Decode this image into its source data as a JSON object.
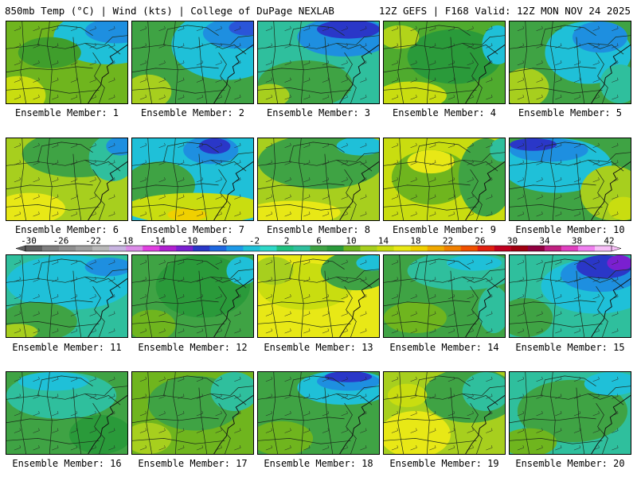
{
  "header": {
    "left": "850mb Temp (°C) | Wind (kts) | College of DuPage NEXLAB",
    "right": "12Z GEFS | F168 Valid: 12Z MON NOV 24 2025"
  },
  "caption_prefix": "Ensemble Member: ",
  "members": [
    {
      "label": "Ensemble Member: 1",
      "bg": "#6fb51e",
      "blobs": [
        {
          "c": "#1fc0d8",
          "cx": 130,
          "cy": 20,
          "rx": 70,
          "ry": 35
        },
        {
          "c": "#1e8fe0",
          "cx": 140,
          "cy": 12,
          "rx": 40,
          "ry": 16
        },
        {
          "c": "#c9dd10",
          "cx": 15,
          "cy": 95,
          "rx": 35,
          "ry": 25
        },
        {
          "c": "#3f9e2c",
          "cx": 55,
          "cy": 40,
          "rx": 40,
          "ry": 20
        }
      ]
    },
    {
      "label": "Ensemble Member: 2",
      "bg": "#3fa344",
      "blobs": [
        {
          "c": "#1fc0d8",
          "cx": 120,
          "cy": 30,
          "rx": 70,
          "ry": 45
        },
        {
          "c": "#1e8fe0",
          "cx": 135,
          "cy": 15,
          "rx": 45,
          "ry": 20
        },
        {
          "c": "#2a55d8",
          "cx": 145,
          "cy": 8,
          "rx": 22,
          "ry": 10
        },
        {
          "c": "#a7cf1e",
          "cx": 20,
          "cy": 90,
          "rx": 30,
          "ry": 22
        }
      ]
    },
    {
      "label": "Ensemble Member: 3",
      "bg": "#2fbf9d",
      "blobs": [
        {
          "c": "#1e8fe0",
          "cx": 110,
          "cy": 20,
          "rx": 60,
          "ry": 25
        },
        {
          "c": "#2a37c8",
          "cx": 115,
          "cy": 10,
          "rx": 40,
          "ry": 12
        },
        {
          "c": "#3fa344",
          "cx": 60,
          "cy": 80,
          "rx": 60,
          "ry": 30
        },
        {
          "c": "#a7cf1e",
          "cx": 15,
          "cy": 95,
          "rx": 25,
          "ry": 15
        }
      ]
    },
    {
      "label": "Ensemble Member: 4",
      "bg": "#4fab2e",
      "blobs": [
        {
          "c": "#2a9a3a",
          "cx": 90,
          "cy": 45,
          "rx": 60,
          "ry": 35
        },
        {
          "c": "#1fc0d8",
          "cx": 145,
          "cy": 30,
          "rx": 20,
          "ry": 25
        },
        {
          "c": "#c9dd10",
          "cx": 35,
          "cy": 95,
          "rx": 45,
          "ry": 18
        },
        {
          "c": "#b2d41a",
          "cx": 20,
          "cy": 20,
          "rx": 25,
          "ry": 15
        }
      ]
    },
    {
      "label": "Ensemble Member: 5",
      "bg": "#3fa344",
      "blobs": [
        {
          "c": "#1fc0d8",
          "cx": 100,
          "cy": 40,
          "rx": 55,
          "ry": 40
        },
        {
          "c": "#1e8fe0",
          "cx": 115,
          "cy": 20,
          "rx": 35,
          "ry": 20
        },
        {
          "c": "#a7cf1e",
          "cx": 20,
          "cy": 85,
          "rx": 30,
          "ry": 25
        },
        {
          "c": "#2fbf9d",
          "cx": 140,
          "cy": 80,
          "rx": 25,
          "ry": 25
        }
      ]
    },
    {
      "label": "Ensemble Member: 6",
      "bg": "#a7cf1e",
      "blobs": [
        {
          "c": "#3fa344",
          "cx": 90,
          "cy": 20,
          "rx": 70,
          "ry": 30
        },
        {
          "c": "#2fbf9d",
          "cx": 135,
          "cy": 25,
          "rx": 30,
          "ry": 30
        },
        {
          "c": "#1e8fe0",
          "cx": 145,
          "cy": 10,
          "rx": 18,
          "ry": 12
        },
        {
          "c": "#e8e816",
          "cx": 30,
          "cy": 90,
          "rx": 45,
          "ry": 20
        }
      ]
    },
    {
      "label": "Ensemble Member: 7",
      "bg": "#1fc0d8",
      "blobs": [
        {
          "c": "#1e8fe0",
          "cx": 100,
          "cy": 15,
          "rx": 35,
          "ry": 18
        },
        {
          "c": "#2a37c8",
          "cx": 105,
          "cy": 10,
          "rx": 20,
          "ry": 10
        },
        {
          "c": "#3fa344",
          "cx": 35,
          "cy": 60,
          "rx": 45,
          "ry": 30
        },
        {
          "c": "#c9dd10",
          "cx": 80,
          "cy": 90,
          "rx": 90,
          "ry": 20
        },
        {
          "c": "#f0d000",
          "cx": 70,
          "cy": 98,
          "rx": 25,
          "ry": 8
        }
      ]
    },
    {
      "label": "Ensemble Member: 8",
      "bg": "#a7cf1e",
      "blobs": [
        {
          "c": "#3fa344",
          "cx": 80,
          "cy": 30,
          "rx": 80,
          "ry": 35
        },
        {
          "c": "#1fc0d8",
          "cx": 130,
          "cy": 10,
          "rx": 30,
          "ry": 12
        },
        {
          "c": "#e8e816",
          "cx": 45,
          "cy": 95,
          "rx": 60,
          "ry": 15
        }
      ]
    },
    {
      "label": "Ensemble Member: 9",
      "bg": "#c9dd10",
      "blobs": [
        {
          "c": "#6fb51e",
          "cx": 60,
          "cy": 50,
          "rx": 50,
          "ry": 35
        },
        {
          "c": "#3fa344",
          "cx": 130,
          "cy": 50,
          "rx": 35,
          "ry": 50
        },
        {
          "c": "#2fbf9d",
          "cx": 150,
          "cy": 15,
          "rx": 15,
          "ry": 15
        },
        {
          "c": "#e8e816",
          "cx": 60,
          "cy": 30,
          "rx": 30,
          "ry": 15
        }
      ]
    },
    {
      "label": "Ensemble Member: 10",
      "bg": "#3fa344",
      "blobs": [
        {
          "c": "#1fc0d8",
          "cx": 60,
          "cy": 35,
          "rx": 70,
          "ry": 35
        },
        {
          "c": "#1e8fe0",
          "cx": 50,
          "cy": 15,
          "rx": 50,
          "ry": 15
        },
        {
          "c": "#2a37c8",
          "cx": 30,
          "cy": 8,
          "rx": 30,
          "ry": 8
        },
        {
          "c": "#a7cf1e",
          "cx": 130,
          "cy": 70,
          "rx": 40,
          "ry": 35
        },
        {
          "c": "#c9dd10",
          "cx": 145,
          "cy": 90,
          "rx": 20,
          "ry": 15
        }
      ]
    },
    {
      "label": "Ensemble Member: 11",
      "bg": "#2fbf9d",
      "blobs": [
        {
          "c": "#1fc0d8",
          "cx": 80,
          "cy": 35,
          "rx": 80,
          "ry": 35
        },
        {
          "c": "#1e8fe0",
          "cx": 130,
          "cy": 15,
          "rx": 30,
          "ry": 12
        },
        {
          "c": "#3fa344",
          "cx": 40,
          "cy": 85,
          "rx": 50,
          "ry": 25
        },
        {
          "c": "#a7cf1e",
          "cx": 15,
          "cy": 98,
          "rx": 25,
          "ry": 10
        }
      ]
    },
    {
      "label": "Ensemble Member: 12",
      "bg": "#3fa344",
      "blobs": [
        {
          "c": "#2a9a3a",
          "cx": 90,
          "cy": 40,
          "rx": 60,
          "ry": 40
        },
        {
          "c": "#1fc0d8",
          "cx": 140,
          "cy": 20,
          "rx": 20,
          "ry": 18
        },
        {
          "c": "#6fb51e",
          "cx": 25,
          "cy": 90,
          "rx": 30,
          "ry": 20
        }
      ]
    },
    {
      "label": "Ensemble Member: 13",
      "bg": "#e8e816",
      "blobs": [
        {
          "c": "#c9dd10",
          "cx": 60,
          "cy": 40,
          "rx": 60,
          "ry": 30
        },
        {
          "c": "#3fa344",
          "cx": 125,
          "cy": 20,
          "rx": 45,
          "ry": 25
        },
        {
          "c": "#1fc0d8",
          "cx": 145,
          "cy": 10,
          "rx": 20,
          "ry": 10
        },
        {
          "c": "#a7cf1e",
          "cx": 20,
          "cy": 20,
          "rx": 25,
          "ry": 18
        }
      ]
    },
    {
      "label": "Ensemble Member: 14",
      "bg": "#3fa344",
      "blobs": [
        {
          "c": "#2fbf9d",
          "cx": 100,
          "cy": 20,
          "rx": 70,
          "ry": 25
        },
        {
          "c": "#1fc0d8",
          "cx": 115,
          "cy": 10,
          "rx": 35,
          "ry": 10
        },
        {
          "c": "#6fb51e",
          "cx": 40,
          "cy": 80,
          "rx": 40,
          "ry": 20
        },
        {
          "c": "#2fbf9d",
          "cx": 140,
          "cy": 70,
          "rx": 20,
          "ry": 30
        }
      ]
    },
    {
      "label": "Ensemble Member: 15",
      "bg": "#2fbf9d",
      "blobs": [
        {
          "c": "#1fc0d8",
          "cx": 110,
          "cy": 40,
          "rx": 70,
          "ry": 35
        },
        {
          "c": "#1e8fe0",
          "cx": 115,
          "cy": 25,
          "rx": 50,
          "ry": 22
        },
        {
          "c": "#2a37c8",
          "cx": 120,
          "cy": 15,
          "rx": 35,
          "ry": 15
        },
        {
          "c": "#7a20d0",
          "cx": 140,
          "cy": 10,
          "rx": 16,
          "ry": 10
        },
        {
          "c": "#3fa344",
          "cx": 20,
          "cy": 80,
          "rx": 35,
          "ry": 25
        }
      ]
    },
    {
      "label": "Ensemble Member: 16",
      "bg": "#3fa344",
      "blobs": [
        {
          "c": "#2fbf9d",
          "cx": 70,
          "cy": 30,
          "rx": 70,
          "ry": 30
        },
        {
          "c": "#1fc0d8",
          "cx": 60,
          "cy": 12,
          "rx": 45,
          "ry": 12
        },
        {
          "c": "#2a9a3a",
          "cx": 120,
          "cy": 80,
          "rx": 40,
          "ry": 25
        }
      ]
    },
    {
      "label": "Ensemble Member: 17",
      "bg": "#6fb51e",
      "blobs": [
        {
          "c": "#3fa344",
          "cx": 80,
          "cy": 40,
          "rx": 60,
          "ry": 35
        },
        {
          "c": "#2fbf9d",
          "cx": 130,
          "cy": 25,
          "rx": 30,
          "ry": 25
        },
        {
          "c": "#a7cf1e",
          "cx": 20,
          "cy": 85,
          "rx": 30,
          "ry": 20
        }
      ]
    },
    {
      "label": "Ensemble Member: 18",
      "bg": "#3fa344",
      "blobs": [
        {
          "c": "#1fc0d8",
          "cx": 110,
          "cy": 20,
          "rx": 60,
          "ry": 22
        },
        {
          "c": "#1e8fe0",
          "cx": 115,
          "cy": 12,
          "rx": 40,
          "ry": 12
        },
        {
          "c": "#2a37c8",
          "cx": 115,
          "cy": 6,
          "rx": 30,
          "ry": 7
        },
        {
          "c": "#6fb51e",
          "cx": 30,
          "cy": 85,
          "rx": 40,
          "ry": 22
        }
      ]
    },
    {
      "label": "Ensemble Member: 19",
      "bg": "#a7cf1e",
      "blobs": [
        {
          "c": "#3fa344",
          "cx": 110,
          "cy": 30,
          "rx": 60,
          "ry": 35
        },
        {
          "c": "#2fbf9d",
          "cx": 130,
          "cy": 25,
          "rx": 30,
          "ry": 25
        },
        {
          "c": "#e8e816",
          "cx": 40,
          "cy": 80,
          "rx": 45,
          "ry": 30
        },
        {
          "c": "#c9dd10",
          "cx": 30,
          "cy": 30,
          "rx": 25,
          "ry": 15
        }
      ]
    },
    {
      "label": "Ensemble Member: 20",
      "bg": "#2fbf9d",
      "blobs": [
        {
          "c": "#3fa344",
          "cx": 80,
          "cy": 50,
          "rx": 70,
          "ry": 40
        },
        {
          "c": "#1fc0d8",
          "cx": 130,
          "cy": 15,
          "rx": 35,
          "ry": 15
        },
        {
          "c": "#6fb51e",
          "cx": 25,
          "cy": 90,
          "rx": 35,
          "ry": 18
        }
      ]
    }
  ],
  "colorbar": {
    "labels": [
      "-30",
      "-26",
      "-22",
      "-18",
      "-14",
      "-10",
      "-6",
      "-2",
      "2",
      "6",
      "10",
      "14",
      "18",
      "22",
      "26",
      "30",
      "34",
      "38",
      "42"
    ],
    "colors": [
      "#5f5f5f",
      "#7f7f7f",
      "#8f8f8f",
      "#a0a0a0",
      "#b8b8b8",
      "#c8b4e0",
      "#dc8ce8",
      "#e040e0",
      "#b020d0",
      "#7a20d0",
      "#2a37c8",
      "#1e68e0",
      "#1e9ae8",
      "#1fc0d8",
      "#2fd8c8",
      "#20c080",
      "#2fbf9d",
      "#3fa344",
      "#2a9a3a",
      "#6fb51e",
      "#a7cf1e",
      "#c9dd10",
      "#e8e816",
      "#f0d000",
      "#f0a800",
      "#f08000",
      "#f05000",
      "#e02010",
      "#c00020",
      "#a00010",
      "#900040",
      "#c02080",
      "#e040c0",
      "#f080f0",
      "#f8c0f8"
    ]
  }
}
